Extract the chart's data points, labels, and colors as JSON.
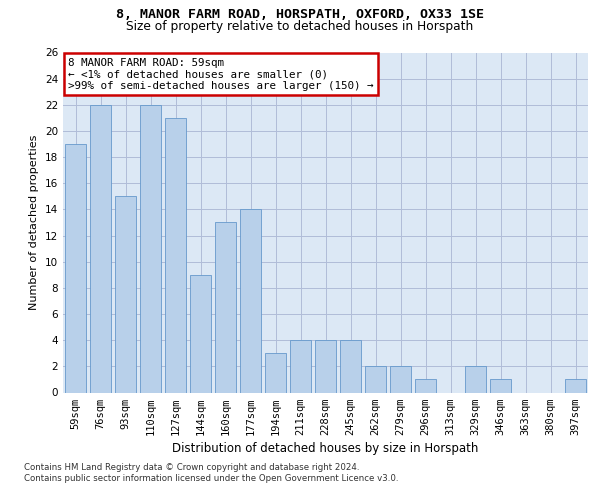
{
  "title_line1": "8, MANOR FARM ROAD, HORSPATH, OXFORD, OX33 1SE",
  "title_line2": "Size of property relative to detached houses in Horspath",
  "xlabel": "Distribution of detached houses by size in Horspath",
  "ylabel": "Number of detached properties",
  "categories": [
    "59sqm",
    "76sqm",
    "93sqm",
    "110sqm",
    "127sqm",
    "144sqm",
    "160sqm",
    "177sqm",
    "194sqm",
    "211sqm",
    "228sqm",
    "245sqm",
    "262sqm",
    "279sqm",
    "296sqm",
    "313sqm",
    "329sqm",
    "346sqm",
    "363sqm",
    "380sqm",
    "397sqm"
  ],
  "values": [
    19,
    22,
    15,
    22,
    21,
    9,
    13,
    14,
    3,
    4,
    4,
    4,
    2,
    2,
    1,
    0,
    2,
    1,
    0,
    0,
    1
  ],
  "bar_color": "#b8d0ea",
  "bar_edge_color": "#6699cc",
  "annotation_title": "8 MANOR FARM ROAD: 59sqm",
  "annotation_line2": "← <1% of detached houses are smaller (0)",
  "annotation_line3": ">99% of semi-detached houses are larger (150) →",
  "annotation_box_edge": "#cc0000",
  "ylim_max": 26,
  "ytick_step": 2,
  "footnote1": "Contains HM Land Registry data © Crown copyright and database right 2024.",
  "footnote2": "Contains public sector information licensed under the Open Government Licence v3.0.",
  "fig_bg": "#ffffff",
  "plot_bg": "#dce8f5",
  "grid_color": "#b0bcd8",
  "title1_fontsize": 9.5,
  "title2_fontsize": 8.8,
  "ylabel_fontsize": 8.0,
  "xlabel_fontsize": 8.5,
  "tick_fontsize": 7.5,
  "ann_fontsize": 7.8,
  "footnote_fontsize": 6.2
}
